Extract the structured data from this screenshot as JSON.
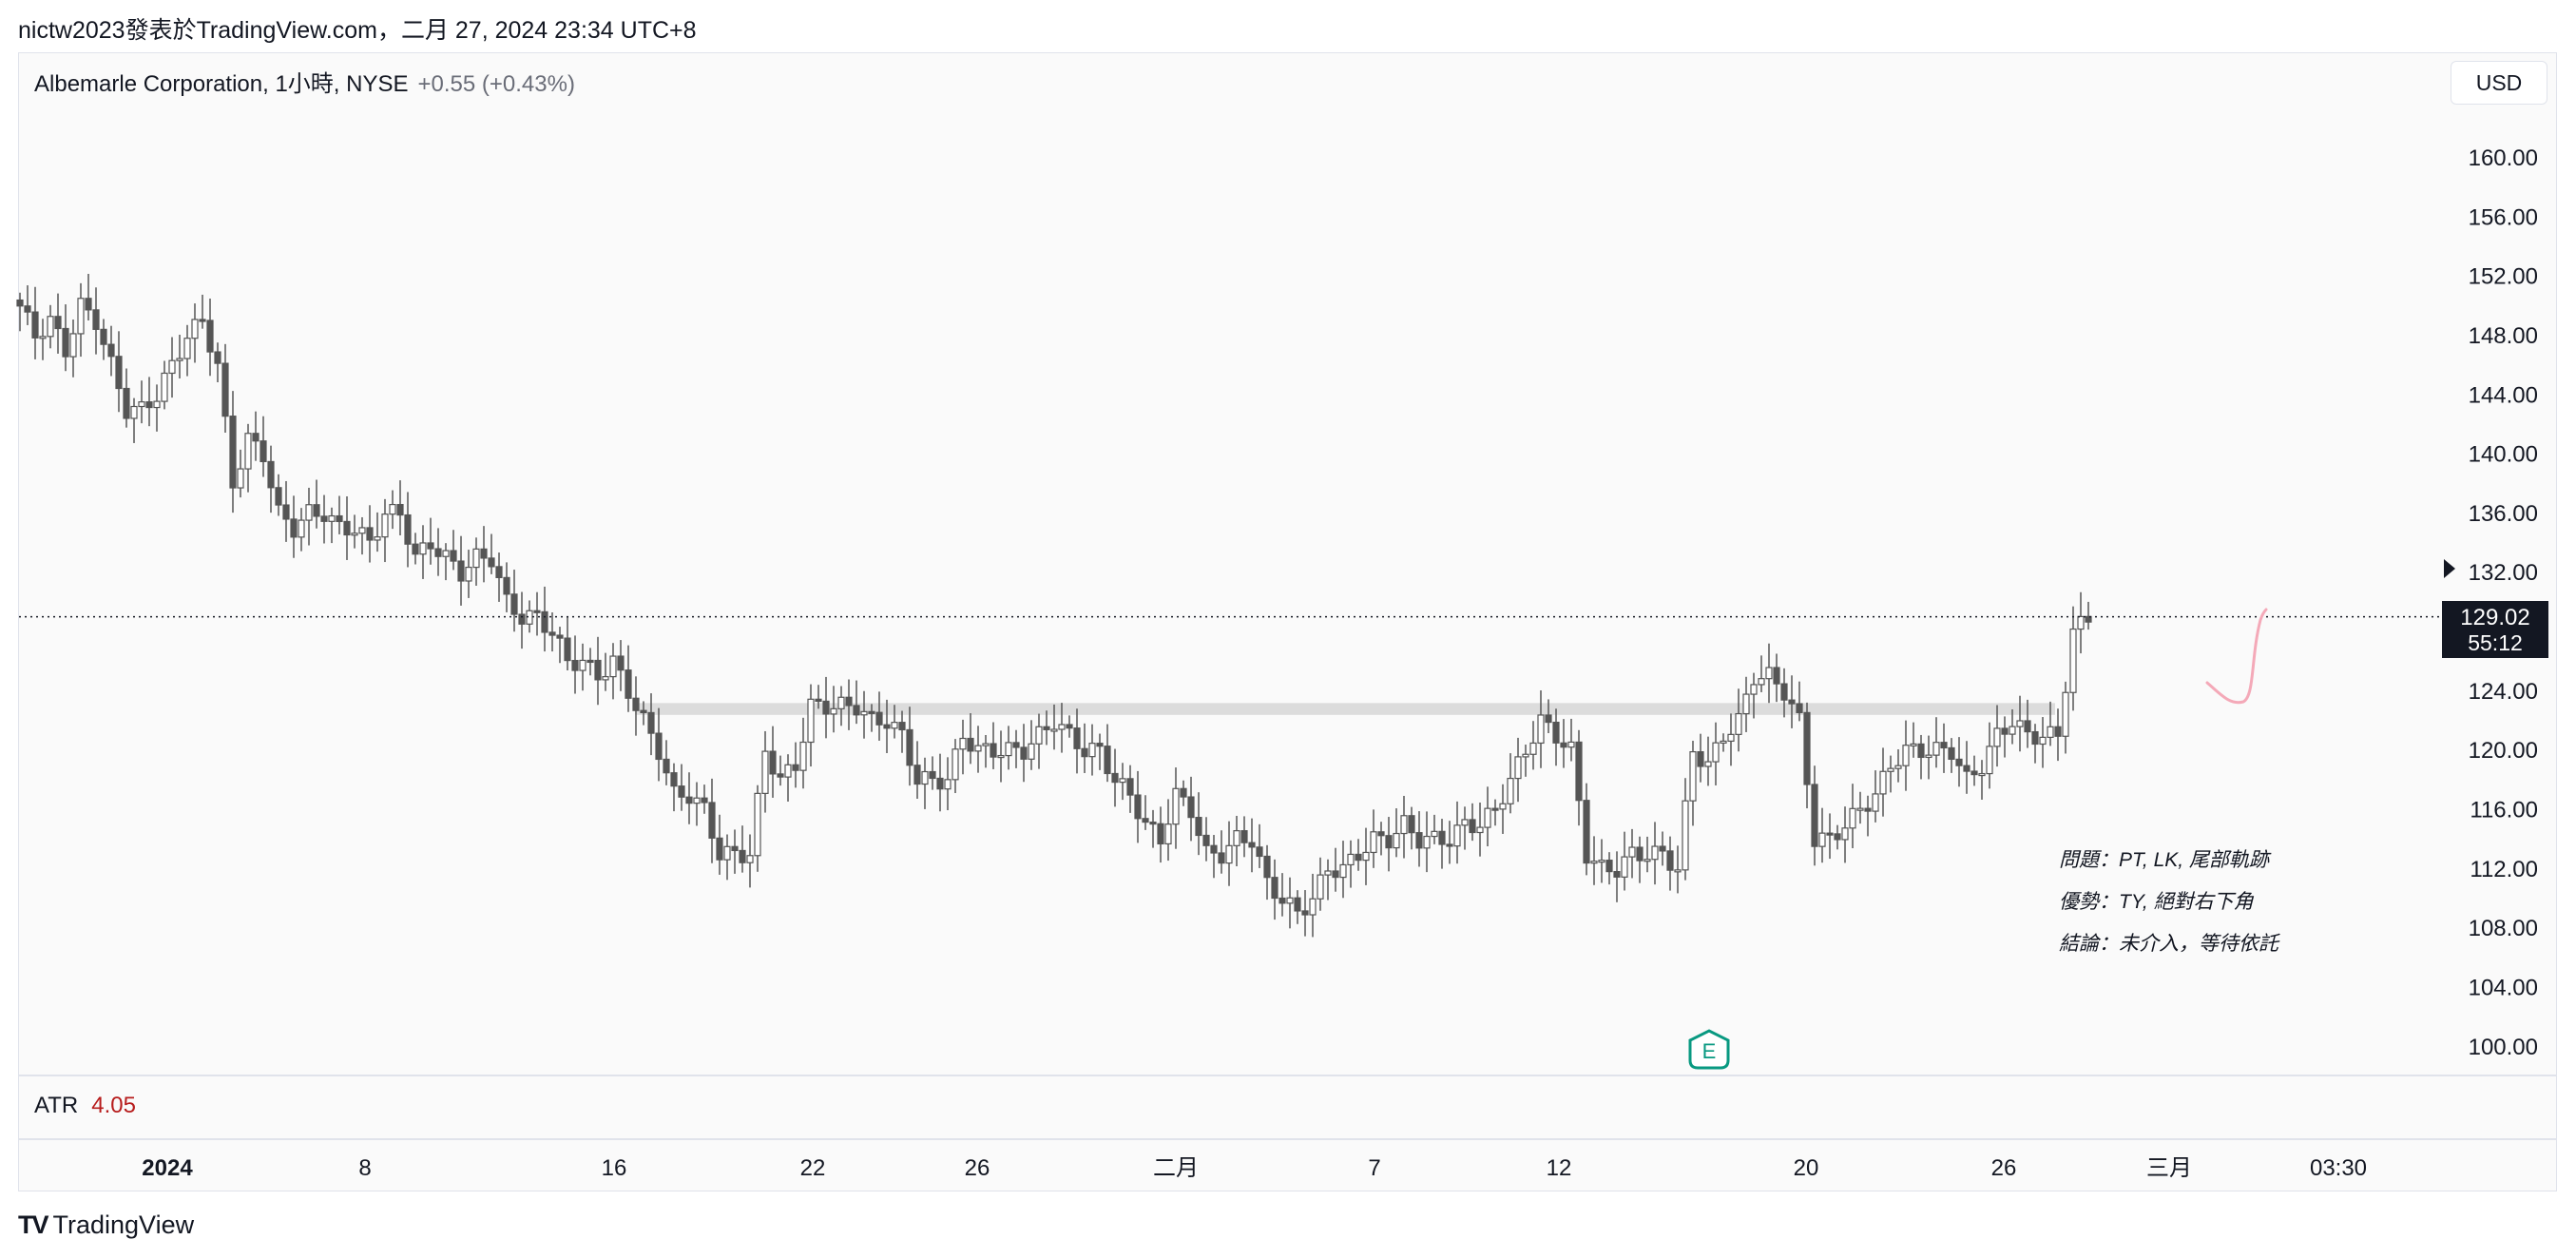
{
  "header": {
    "publish_line": "nictw2023發表於TradingView.com，二月 27, 2024 23:34 UTC+8"
  },
  "legend": {
    "symbol": "Albemarle Corporation, 1小時, NYSE",
    "change": "+0.55 (+0.43%)"
  },
  "currency": "USD",
  "price_tag": {
    "price": "129.02",
    "countdown": "55:12"
  },
  "indicator": {
    "name": "ATR",
    "value": "4.05"
  },
  "brand": {
    "logo": "TV",
    "name": "TradingView"
  },
  "earnings_marker": "E",
  "annotations": [
    "問題：PT, LK, 尾部軌跡",
    "優勢：TY, 絕對右下角",
    "結論：未介入，等待依託"
  ],
  "chart_data": {
    "type": "candlestick",
    "title": "Albemarle Corporation, 1小時, NYSE",
    "ylim": [
      98,
      164
    ],
    "y_ticks": [
      "160.00",
      "156.00",
      "152.00",
      "148.00",
      "144.00",
      "140.00",
      "136.00",
      "132.00",
      "124.00",
      "120.00",
      "116.00",
      "112.00",
      "108.00",
      "104.00",
      "100.00"
    ],
    "x_ticks": [
      "2024",
      "8",
      "16",
      "22",
      "26",
      "二月",
      "7",
      "12",
      "20",
      "26",
      "三月",
      "03:30"
    ],
    "last_price": 129.02,
    "resistance_zone": [
      122.4,
      123.2
    ],
    "grid": false,
    "close_path": [
      [
        0,
        150
      ],
      [
        2,
        148
      ],
      [
        4,
        149
      ],
      [
        6,
        147
      ],
      [
        8,
        150
      ],
      [
        10,
        149
      ],
      [
        12,
        146
      ],
      [
        14,
        143
      ],
      [
        16,
        143
      ],
      [
        18,
        144
      ],
      [
        20,
        146
      ],
      [
        22,
        148
      ],
      [
        24,
        149
      ],
      [
        26,
        146
      ],
      [
        28,
        138
      ],
      [
        30,
        141
      ],
      [
        32,
        140
      ],
      [
        34,
        136
      ],
      [
        36,
        135
      ],
      [
        38,
        136
      ],
      [
        40,
        136
      ],
      [
        42,
        135
      ],
      [
        44,
        135
      ],
      [
        46,
        134
      ],
      [
        48,
        136
      ],
      [
        50,
        136
      ],
      [
        52,
        133
      ],
      [
        54,
        134
      ],
      [
        56,
        133
      ],
      [
        58,
        132
      ],
      [
        60,
        133
      ],
      [
        62,
        133
      ],
      [
        64,
        130
      ],
      [
        66,
        129
      ],
      [
        68,
        129
      ],
      [
        70,
        128
      ],
      [
        72,
        126
      ],
      [
        74,
        126
      ],
      [
        76,
        125
      ],
      [
        78,
        126
      ],
      [
        80,
        124
      ],
      [
        82,
        122
      ],
      [
        84,
        120
      ],
      [
        86,
        117
      ],
      [
        88,
        117
      ],
      [
        90,
        116
      ],
      [
        92,
        113
      ],
      [
        94,
        113
      ],
      [
        96,
        113
      ],
      [
        98,
        120
      ],
      [
        100,
        118
      ],
      [
        102,
        119
      ],
      [
        104,
        123
      ],
      [
        106,
        123
      ],
      [
        108,
        123
      ],
      [
        110,
        123
      ],
      [
        112,
        122
      ],
      [
        114,
        122
      ],
      [
        116,
        121
      ],
      [
        118,
        118
      ],
      [
        120,
        118
      ],
      [
        122,
        118
      ],
      [
        124,
        121
      ],
      [
        126,
        120
      ],
      [
        128,
        120
      ],
      [
        130,
        120
      ],
      [
        132,
        120
      ],
      [
        134,
        121
      ],
      [
        136,
        122
      ],
      [
        138,
        121
      ],
      [
        140,
        120
      ],
      [
        142,
        120
      ],
      [
        144,
        118
      ],
      [
        146,
        117
      ],
      [
        148,
        115
      ],
      [
        150,
        114
      ],
      [
        152,
        117
      ],
      [
        154,
        116
      ],
      [
        156,
        113
      ],
      [
        158,
        113
      ],
      [
        160,
        114
      ],
      [
        162,
        114
      ],
      [
        164,
        111
      ],
      [
        166,
        110
      ],
      [
        168,
        109
      ],
      [
        170,
        110
      ],
      [
        172,
        112
      ],
      [
        174,
        112
      ],
      [
        176,
        113
      ],
      [
        178,
        114
      ],
      [
        180,
        114
      ],
      [
        182,
        115
      ],
      [
        184,
        114
      ],
      [
        186,
        114
      ],
      [
        188,
        114
      ],
      [
        190,
        115
      ],
      [
        192,
        115
      ],
      [
        194,
        116
      ],
      [
        196,
        118
      ],
      [
        198,
        120
      ],
      [
        200,
        122
      ],
      [
        202,
        121
      ],
      [
        204,
        120
      ],
      [
        206,
        113
      ],
      [
        208,
        112
      ],
      [
        210,
        112
      ],
      [
        212,
        113
      ],
      [
        214,
        113
      ],
      [
        216,
        113
      ],
      [
        218,
        112
      ],
      [
        220,
        120
      ],
      [
        222,
        119
      ],
      [
        224,
        121
      ],
      [
        226,
        122
      ],
      [
        228,
        125
      ],
      [
        230,
        125
      ],
      [
        232,
        124
      ],
      [
        234,
        122
      ],
      [
        236,
        114
      ],
      [
        238,
        114
      ],
      [
        240,
        115
      ],
      [
        242,
        116
      ],
      [
        244,
        117
      ],
      [
        246,
        119
      ],
      [
        248,
        120
      ],
      [
        250,
        120
      ],
      [
        252,
        120
      ],
      [
        254,
        120
      ],
      [
        256,
        118
      ],
      [
        258,
        119
      ],
      [
        260,
        121
      ],
      [
        262,
        122
      ],
      [
        264,
        121
      ],
      [
        266,
        121
      ],
      [
        268,
        121
      ],
      [
        270,
        128
      ],
      [
        272,
        129
      ]
    ]
  }
}
